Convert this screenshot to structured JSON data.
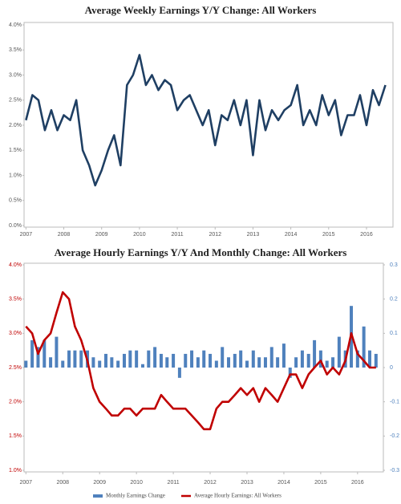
{
  "chart_data": [
    {
      "type": "line",
      "title": "Average Weekly Earnings Y/Y Change: All Workers",
      "x": [
        2007.0,
        2007.17,
        2007.33,
        2007.5,
        2007.67,
        2007.83,
        2008.0,
        2008.17,
        2008.33,
        2008.5,
        2008.67,
        2008.83,
        2009.0,
        2009.17,
        2009.33,
        2009.5,
        2009.67,
        2009.83,
        2010.0,
        2010.17,
        2010.33,
        2010.5,
        2010.67,
        2010.83,
        2011.0,
        2011.17,
        2011.33,
        2011.5,
        2011.67,
        2011.83,
        2012.0,
        2012.17,
        2012.33,
        2012.5,
        2012.67,
        2012.83,
        2013.0,
        2013.17,
        2013.33,
        2013.5,
        2013.67,
        2013.83,
        2014.0,
        2014.17,
        2014.33,
        2014.5,
        2014.67,
        2014.83,
        2015.0,
        2015.17,
        2015.33,
        2015.5,
        2015.67,
        2015.83,
        2016.0,
        2016.17,
        2016.33,
        2016.5
      ],
      "series": [
        {
          "color": "#1f3f63",
          "values": [
            2.1,
            2.6,
            2.5,
            1.9,
            2.3,
            1.9,
            2.2,
            2.1,
            2.5,
            1.5,
            1.2,
            0.8,
            1.1,
            1.5,
            1.8,
            1.2,
            2.8,
            3.0,
            3.4,
            2.8,
            3.0,
            2.7,
            2.9,
            2.8,
            2.3,
            2.5,
            2.6,
            2.3,
            2.0,
            2.3,
            1.6,
            2.2,
            2.1,
            2.5,
            2.0,
            2.5,
            1.4,
            2.5,
            1.9,
            2.3,
            2.1,
            2.3,
            2.4,
            2.8,
            2.0,
            2.3,
            2.0,
            2.6,
            2.2,
            2.5,
            1.8,
            2.2,
            2.2,
            2.6,
            2.0,
            2.7,
            2.4,
            2.8
          ]
        }
      ],
      "xlim": [
        2006.95,
        2016.7
      ],
      "xticks": [
        2007,
        2008,
        2009,
        2010,
        2011,
        2012,
        2013,
        2014,
        2015,
        2016
      ],
      "ylim": [
        0,
        4
      ],
      "yticks": [
        {
          "value": 0,
          "label": "0.0%"
        },
        {
          "value": 0.5,
          "label": "0.5%"
        },
        {
          "value": 1,
          "label": "1.0%"
        },
        {
          "value": 1.5,
          "label": "1.5%"
        },
        {
          "value": 2,
          "label": "2.0%"
        },
        {
          "value": 2.5,
          "label": "2.5%"
        },
        {
          "value": 3,
          "label": "3.0%"
        },
        {
          "value": 3.5,
          "label": "3.5%"
        },
        {
          "value": 4,
          "label": "4.0%"
        }
      ]
    },
    {
      "type": "combo",
      "title": "Average Hourly Earnings Y/Y And Monthly Change: All Workers",
      "x": [
        2007.0,
        2007.17,
        2007.33,
        2007.5,
        2007.67,
        2007.83,
        2008.0,
        2008.17,
        2008.33,
        2008.5,
        2008.67,
        2008.83,
        2009.0,
        2009.17,
        2009.33,
        2009.5,
        2009.67,
        2009.83,
        2010.0,
        2010.17,
        2010.33,
        2010.5,
        2010.67,
        2010.83,
        2011.0,
        2011.17,
        2011.33,
        2011.5,
        2011.67,
        2011.83,
        2012.0,
        2012.17,
        2012.33,
        2012.5,
        2012.67,
        2012.83,
        2013.0,
        2013.17,
        2013.33,
        2013.5,
        2013.67,
        2013.83,
        2014.0,
        2014.17,
        2014.33,
        2014.5,
        2014.67,
        2014.83,
        2015.0,
        2015.17,
        2015.33,
        2015.5,
        2015.67,
        2015.83,
        2016.0,
        2016.17,
        2016.33,
        2016.5
      ],
      "series": [
        {
          "name": "Monthly Earnings Change",
          "type": "bar",
          "axis": "y2",
          "color": "#4f81bd",
          "values": [
            0.02,
            0.08,
            0.06,
            0.08,
            0.03,
            0.09,
            0.02,
            0.05,
            0.05,
            0.05,
            0.05,
            0.03,
            0.02,
            0.04,
            0.03,
            0.02,
            0.04,
            0.05,
            0.05,
            0.01,
            0.05,
            0.06,
            0.04,
            0.03,
            0.04,
            -0.03,
            0.04,
            0.05,
            0.03,
            0.05,
            0.04,
            0.02,
            0.06,
            0.03,
            0.04,
            0.05,
            0.02,
            0.05,
            0.03,
            0.03,
            0.06,
            0.03,
            0.07,
            -0.03,
            0.03,
            0.05,
            0.04,
            0.08,
            0.05,
            0.02,
            0.03,
            0.09,
            0.05,
            0.18,
            0.05,
            0.12,
            0.05,
            0.04
          ]
        },
        {
          "name": "Average Hourly Earnings: All Workers",
          "type": "line",
          "axis": "y",
          "color": "#c00000",
          "values": [
            3.1,
            3.0,
            2.7,
            2.9,
            3.0,
            3.3,
            3.6,
            3.5,
            3.1,
            2.9,
            2.6,
            2.2,
            2.0,
            1.9,
            1.8,
            1.8,
            1.9,
            1.9,
            1.8,
            1.9,
            1.9,
            1.9,
            2.1,
            2.0,
            1.9,
            1.9,
            1.9,
            1.8,
            1.7,
            1.6,
            1.6,
            1.9,
            2.0,
            2.0,
            2.1,
            2.2,
            2.1,
            2.2,
            2.0,
            2.2,
            2.1,
            2.0,
            2.2,
            2.4,
            2.4,
            2.2,
            2.4,
            2.5,
            2.6,
            2.4,
            2.5,
            2.4,
            2.6,
            3.0,
            2.7,
            2.6,
            2.5,
            2.5
          ]
        }
      ],
      "xlim": [
        2006.95,
        2016.7
      ],
      "xticks": [
        2007,
        2008,
        2009,
        2010,
        2011,
        2012,
        2013,
        2014,
        2015,
        2016
      ],
      "ylim": [
        1,
        4
      ],
      "yticks": [
        {
          "value": 1,
          "label": "1.0%"
        },
        {
          "value": 1.5,
          "label": "1.5%"
        },
        {
          "value": 2,
          "label": "2.0%"
        },
        {
          "value": 2.5,
          "label": "2.5%"
        },
        {
          "value": 3,
          "label": "3.0%"
        },
        {
          "value": 3.5,
          "label": "3.5%"
        },
        {
          "value": 4,
          "label": "4.0%"
        }
      ],
      "y2lim": [
        -0.3,
        0.3
      ],
      "y2ticks": [
        -0.3,
        -0.2,
        -0.1,
        0,
        0.1,
        0.2,
        0.3
      ]
    }
  ]
}
